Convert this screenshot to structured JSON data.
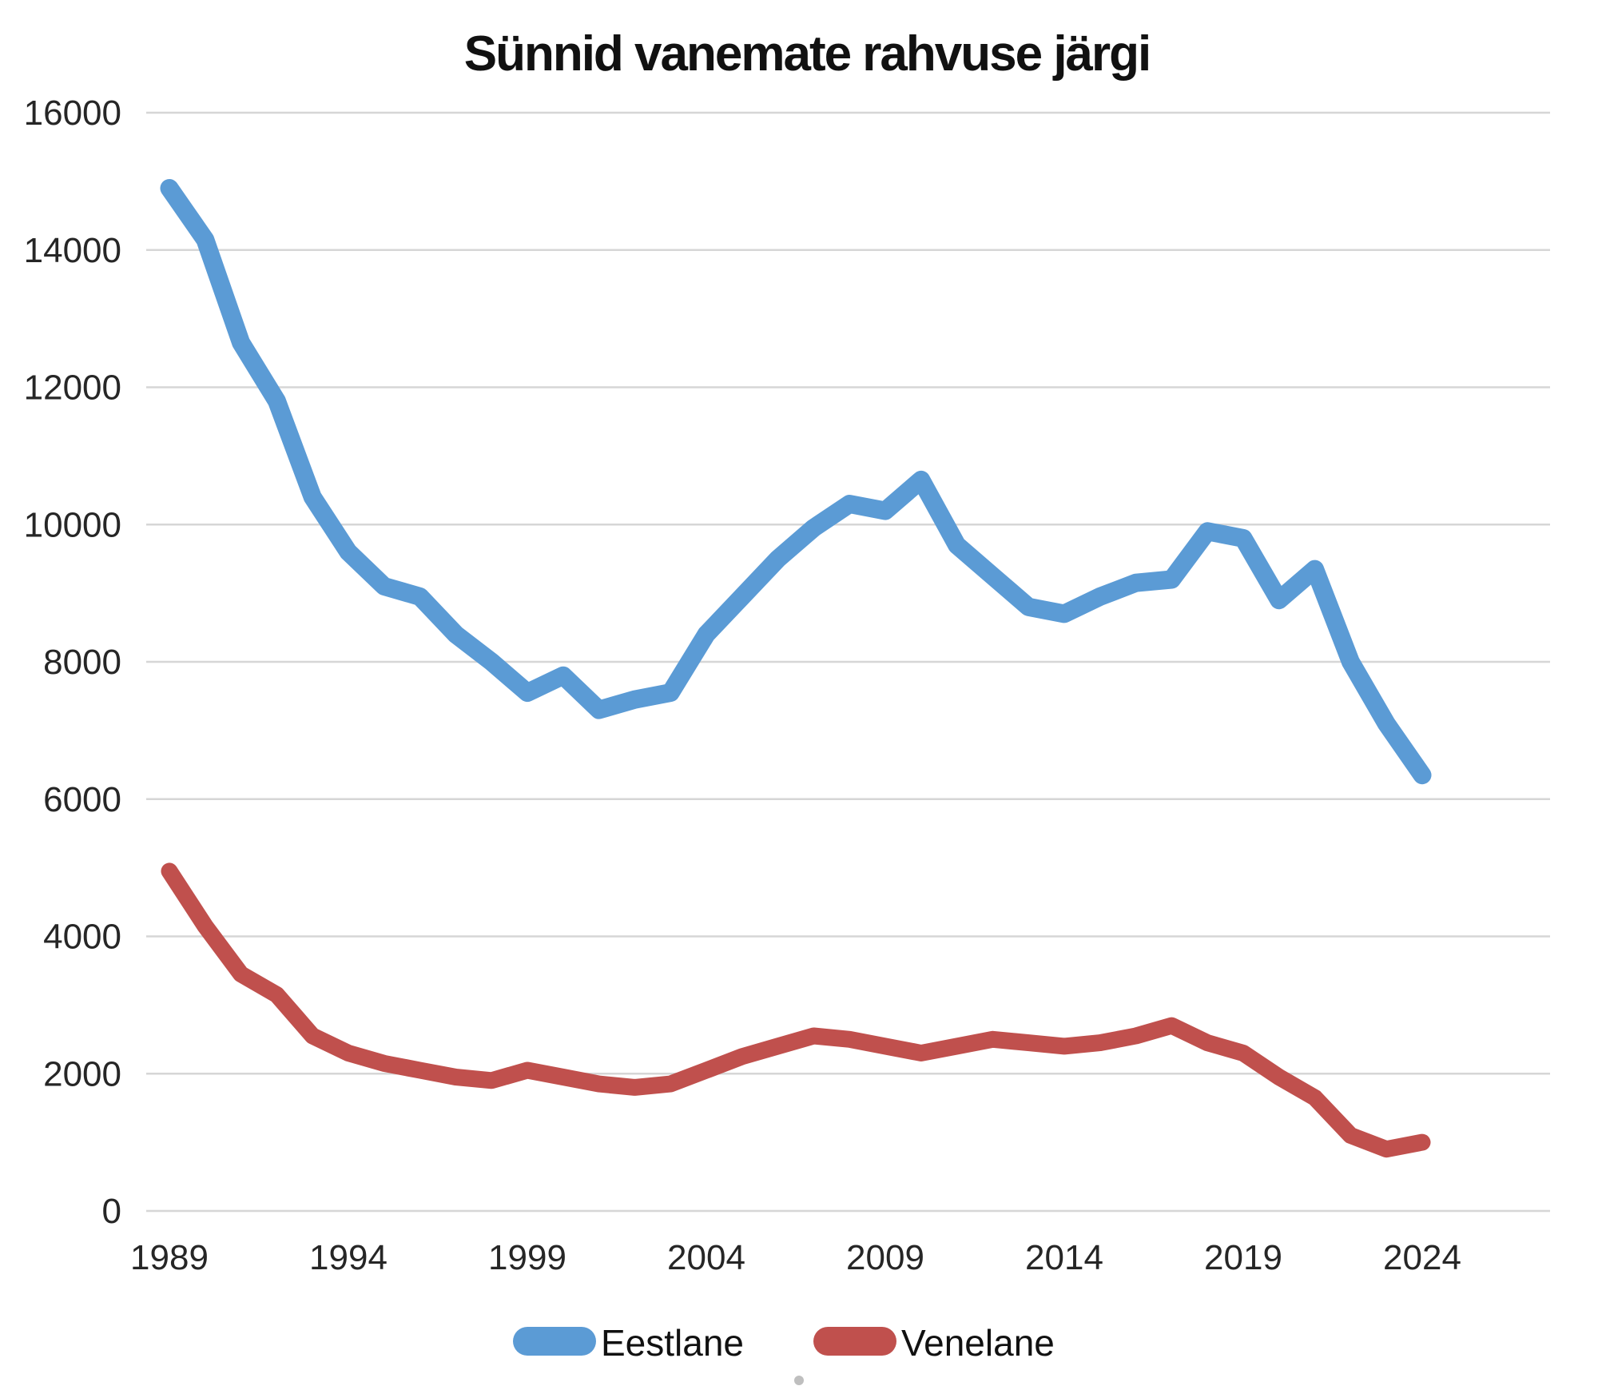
{
  "title": "Sünnid vanemate rahvuse järgi",
  "colors": {
    "eestlane": "#5B9BD5",
    "venelane": "#C0504D",
    "gridline": "#D6D6D6",
    "tick_text": "#262626",
    "title_text": "#111111"
  },
  "legend": {
    "items": [
      {
        "label": "Eestlane",
        "color": "#5B9BD5"
      },
      {
        "label": "Venelane",
        "color": "#C0504D"
      }
    ],
    "position": "bottom"
  },
  "y_axis": {
    "tick_labels": [
      "0",
      "2000",
      "4000",
      "6000",
      "8000",
      "10000",
      "12000",
      "14000",
      "16000"
    ]
  },
  "x_axis": {
    "tick_labels": [
      "1989",
      "1994",
      "1999",
      "2004",
      "2009",
      "2014",
      "2019",
      "2024"
    ]
  },
  "chart_data": {
    "type": "line",
    "title": "Sünnid vanemate rahvuse järgi",
    "x": [
      1989,
      1990,
      1991,
      1992,
      1993,
      1994,
      1995,
      1996,
      1997,
      1998,
      1999,
      2000,
      2001,
      2002,
      2003,
      2004,
      2005,
      2006,
      2007,
      2008,
      2009,
      2010,
      2011,
      2012,
      2013,
      2014,
      2015,
      2016,
      2017,
      2018,
      2019,
      2020,
      2021,
      2022,
      2023,
      2024
    ],
    "series": [
      {
        "name": "Eestlane",
        "color": "#5B9BD5",
        "values": [
          14900,
          14150,
          12650,
          11800,
          10400,
          9600,
          9100,
          8950,
          8400,
          8000,
          7550,
          7800,
          7300,
          7450,
          7550,
          8400,
          8950,
          9500,
          9950,
          10300,
          10200,
          10650,
          9700,
          9250,
          8800,
          8700,
          8950,
          9150,
          9200,
          9900,
          9800,
          8900,
          9350,
          8000,
          7100,
          6350
        ]
      },
      {
        "name": "Venelane",
        "color": "#C0504D",
        "values": [
          4950,
          4150,
          3450,
          3150,
          2550,
          2300,
          2150,
          2050,
          1950,
          1900,
          2050,
          1950,
          1850,
          1800,
          1850,
          2050,
          2250,
          2400,
          2550,
          2500,
          2400,
          2300,
          2400,
          2500,
          2450,
          2400,
          2450,
          2550,
          2700,
          2450,
          2300,
          1950,
          1650,
          1100,
          900,
          1000
        ]
      }
    ],
    "x_ticks": [
      1989,
      1994,
      1999,
      2004,
      2009,
      2014,
      2019,
      2024
    ],
    "y_ticks": [
      0,
      2000,
      4000,
      6000,
      8000,
      10000,
      12000,
      14000,
      16000
    ],
    "ylim": [
      0,
      16000
    ],
    "xlabel": "",
    "ylabel": "",
    "grid": true,
    "legend_position": "bottom"
  }
}
